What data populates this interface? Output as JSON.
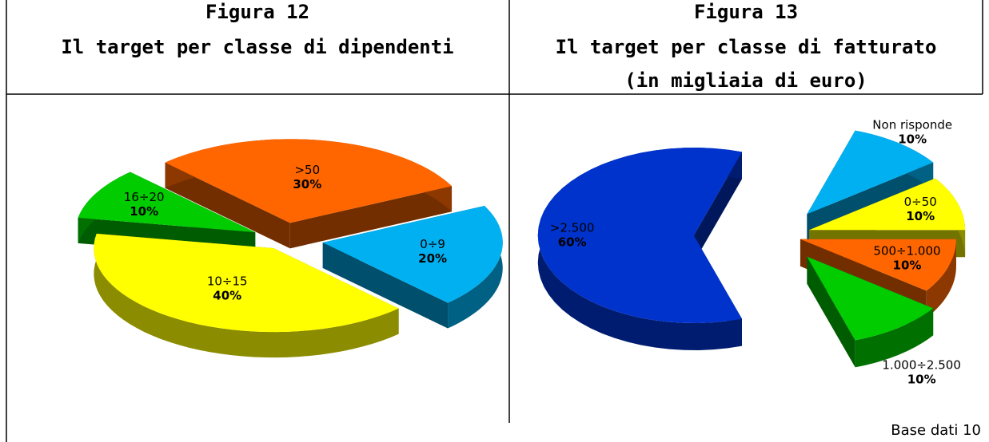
{
  "chart_data": [
    {
      "type": "pie",
      "figure": "Figura 12",
      "title": "Il target per classe di dipendenti",
      "categories": [
        "0÷9",
        "10÷15",
        "16÷20",
        ">50"
      ],
      "values": [
        20,
        40,
        10,
        30
      ],
      "value_labels": [
        "20%",
        "40%",
        "10%",
        "30%"
      ],
      "colors": [
        "#00b0f0",
        "#ffff00",
        "#00cc00",
        "#ff6600"
      ]
    },
    {
      "type": "pie",
      "figure": "Figura 13",
      "title": "Il target per classe di fatturato",
      "subtitle": "(in migliaia di euro)",
      "categories": [
        ">2.500",
        "Non risponde",
        "0÷50",
        "500÷1.000",
        "1.000÷2.500"
      ],
      "values": [
        60,
        10,
        10,
        10,
        10
      ],
      "value_labels": [
        "60%",
        "10%",
        "10%",
        "10%",
        "10%"
      ],
      "colors": [
        "#0033cc",
        "#00b0f0",
        "#ffff00",
        "#ff6600",
        "#00cc00"
      ]
    }
  ],
  "footer": "Base dati 10"
}
